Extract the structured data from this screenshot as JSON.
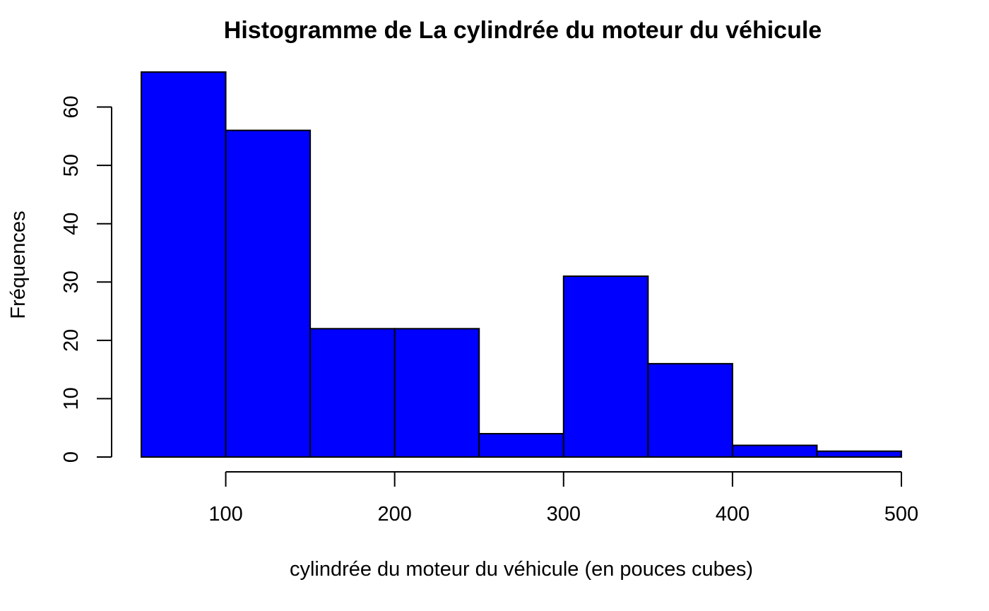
{
  "chart_data": {
    "type": "histogram",
    "title": "Histogramme de La cylindrée du moteur du véhicule",
    "xlabel": "cylindrée du moteur du véhicule (en pouces cubes)",
    "ylabel": "Fréquences",
    "bins": [
      {
        "start": 50,
        "end": 100,
        "count": 66
      },
      {
        "start": 100,
        "end": 150,
        "count": 56
      },
      {
        "start": 150,
        "end": 200,
        "count": 22
      },
      {
        "start": 200,
        "end": 250,
        "count": 22
      },
      {
        "start": 250,
        "end": 300,
        "count": 4
      },
      {
        "start": 300,
        "end": 350,
        "count": 31
      },
      {
        "start": 350,
        "end": 400,
        "count": 16
      },
      {
        "start": 400,
        "end": 450,
        "count": 2
      },
      {
        "start": 450,
        "end": 500,
        "count": 1
      }
    ],
    "xlim": [
      50,
      500
    ],
    "ylim": [
      0,
      66
    ],
    "x_ticks": [
      100,
      200,
      300,
      400,
      500
    ],
    "y_ticks": [
      0,
      10,
      20,
      30,
      40,
      50,
      60
    ],
    "bar_color": "#0000FF",
    "grid": false,
    "legend": "none"
  }
}
